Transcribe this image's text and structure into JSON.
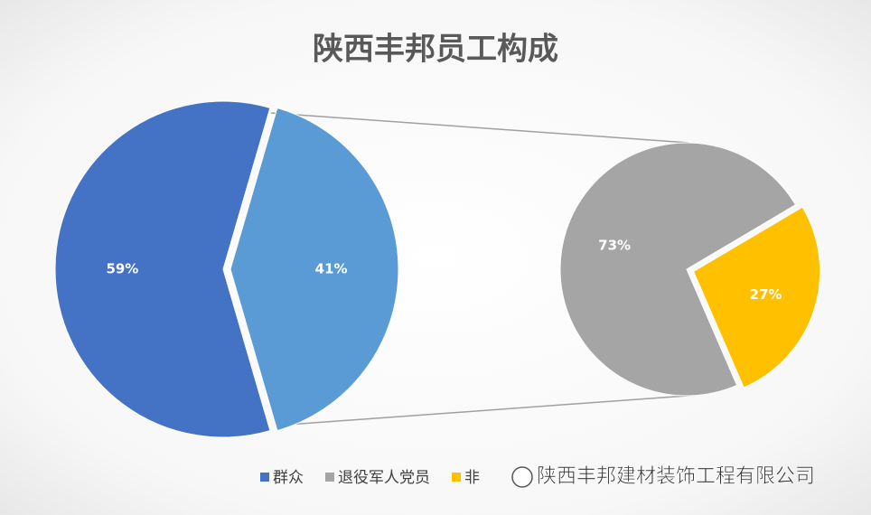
{
  "chart_data": [
    {
      "type": "pie",
      "title": "陕西丰邦员工构成",
      "categories": [
        "群众",
        null
      ],
      "values": [
        59,
        41
      ],
      "value_labels": [
        "59%",
        "41%"
      ],
      "colors": [
        "#4472c4",
        "#5b9bd5"
      ]
    },
    {
      "type": "pie",
      "categories": [
        "退役军人党员",
        "非"
      ],
      "values": [
        73,
        27
      ],
      "value_labels": [
        "73%",
        "27%"
      ],
      "colors": [
        "#a5a5a5",
        "#ffc000"
      ]
    }
  ],
  "watermark": "陕西丰邦建材装饰工程有限公司"
}
